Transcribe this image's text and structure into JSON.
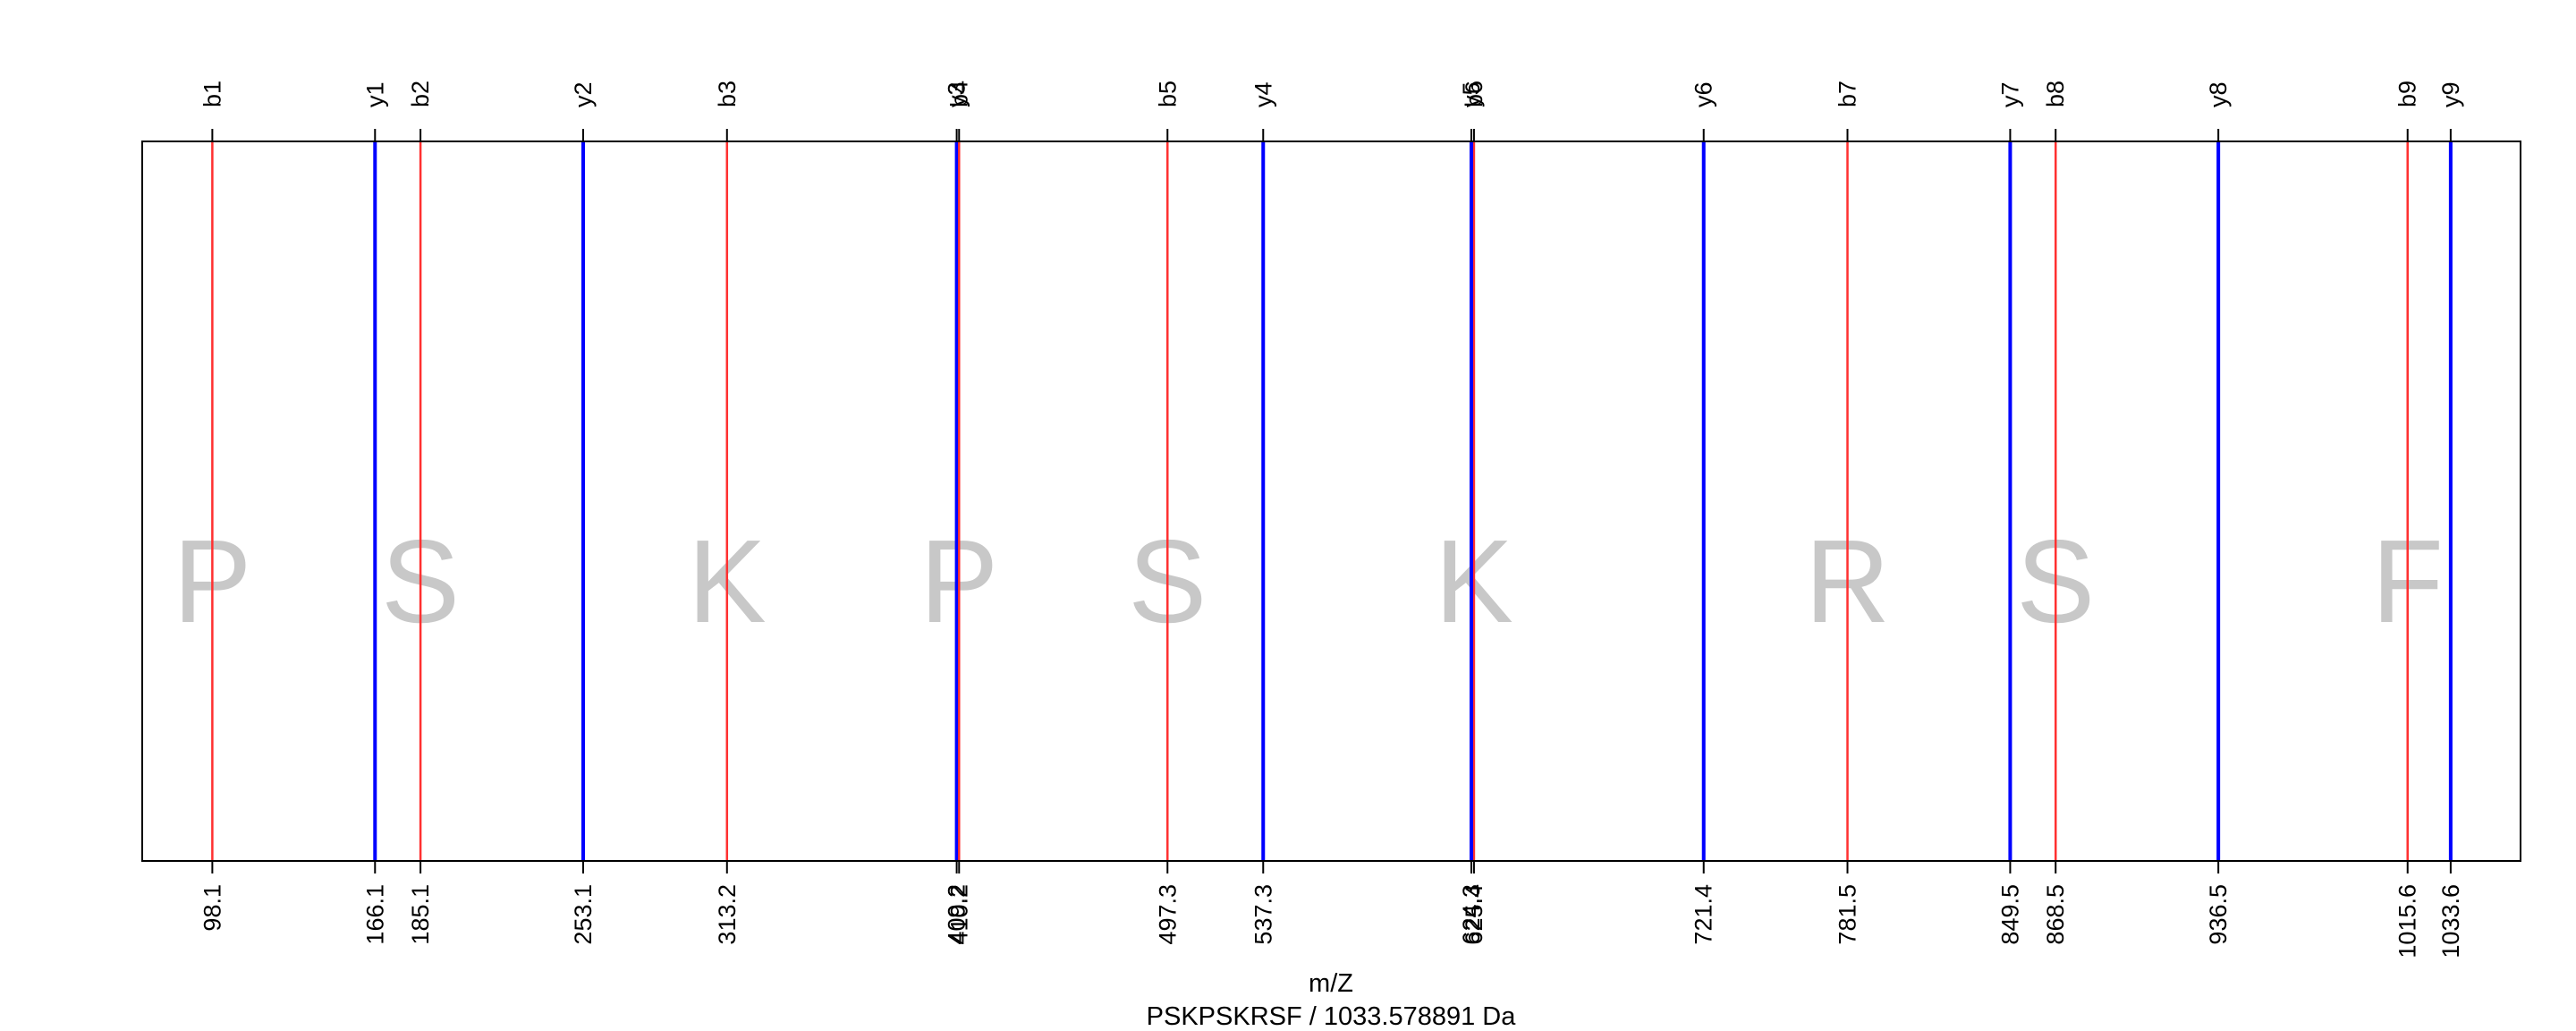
{
  "chart_data": {
    "type": "fragment-ion-map",
    "xlabel": "m/Z",
    "subtitle": "PSKPSKRSF / 1033.578891 Da",
    "xlim": [
      68.8,
      1062.8
    ],
    "grid": false,
    "ions": [
      {
        "name": "b1",
        "series": "b",
        "mz": 98.1,
        "tick_label": "98.1"
      },
      {
        "name": "y1",
        "series": "y",
        "mz": 166.1,
        "tick_label": "166.1"
      },
      {
        "name": "b2",
        "series": "b",
        "mz": 185.1,
        "tick_label": "185.1"
      },
      {
        "name": "y2",
        "series": "y",
        "mz": 253.1,
        "tick_label": "253.1"
      },
      {
        "name": "b3",
        "series": "b",
        "mz": 313.2,
        "tick_label": "313.2"
      },
      {
        "name": "y3",
        "series": "y",
        "mz": 409.2,
        "tick_label": "409.2"
      },
      {
        "name": "b4",
        "series": "b",
        "mz": 410.2,
        "tick_label": "410.2"
      },
      {
        "name": "b5",
        "series": "b",
        "mz": 497.3,
        "tick_label": "497.3"
      },
      {
        "name": "y4",
        "series": "y",
        "mz": 537.3,
        "tick_label": "537.3"
      },
      {
        "name": "b6",
        "series": "b",
        "mz": 625.4,
        "tick_label": "625.4"
      },
      {
        "name": "y5",
        "series": "y",
        "mz": 624.3,
        "tick_label": "624.3"
      },
      {
        "name": "y6",
        "series": "y",
        "mz": 721.4,
        "tick_label": "721.4"
      },
      {
        "name": "b7",
        "series": "b",
        "mz": 781.5,
        "tick_label": "781.5"
      },
      {
        "name": "y7",
        "series": "y",
        "mz": 849.5,
        "tick_label": "849.5"
      },
      {
        "name": "b8",
        "series": "b",
        "mz": 868.5,
        "tick_label": "868.5"
      },
      {
        "name": "y8",
        "series": "y",
        "mz": 936.5,
        "tick_label": "936.5"
      },
      {
        "name": "b9",
        "series": "b",
        "mz": 1015.6,
        "tick_label": "1015.6"
      },
      {
        "name": "y9",
        "series": "y",
        "mz": 1033.6,
        "tick_label": "1033.6"
      }
    ],
    "residues": [
      {
        "letter": "P",
        "mz": 98.1
      },
      {
        "letter": "S",
        "mz": 185.1
      },
      {
        "letter": "K",
        "mz": 313.2
      },
      {
        "letter": "P",
        "mz": 410.2
      },
      {
        "letter": "S",
        "mz": 497.3
      },
      {
        "letter": "K",
        "mz": 625.4
      },
      {
        "letter": "R",
        "mz": 781.5
      },
      {
        "letter": "S",
        "mz": 868.5
      },
      {
        "letter": "F",
        "mz": 1015.6
      }
    ],
    "colors": {
      "b": "#ff3030",
      "y": "#0000ff",
      "frame": "#000000",
      "residue": "#c8c8c8"
    }
  }
}
